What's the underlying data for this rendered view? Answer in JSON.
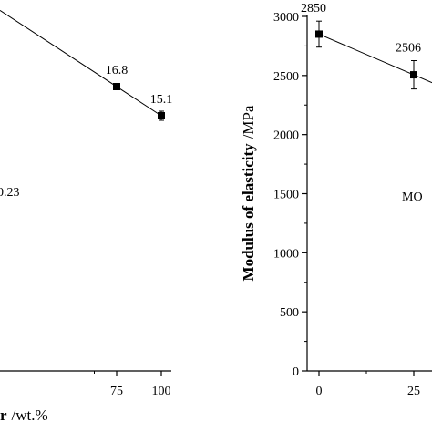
{
  "chart_data": [
    {
      "type": "scatter",
      "x": [
        75,
        100
      ],
      "y": [
        16.8,
        15.1
      ],
      "xlim": [
        50,
        110
      ],
      "xticks": [
        75,
        100
      ],
      "data_labels": [
        "16.8",
        "15.1"
      ],
      "fit_line": true,
      "annotation": "0.23",
      "xlabel_fragment": "r",
      "xlabel_unit": "/wt.%"
    },
    {
      "type": "scatter",
      "x": [
        0,
        25
      ],
      "y": [
        2850,
        2506
      ],
      "error": [
        110,
        120
      ],
      "xlim": [
        -4,
        30
      ],
      "ylim": [
        0,
        3000
      ],
      "yticks": [
        0,
        500,
        1000,
        1500,
        2000,
        2500,
        3000
      ],
      "xticks": [
        0,
        25
      ],
      "data_labels": [
        "2850",
        "2506"
      ],
      "fit_line": true,
      "ylabel": "Modulus of elasticity",
      "ylabel_unit": "/MPa",
      "annotation": "MO"
    }
  ]
}
